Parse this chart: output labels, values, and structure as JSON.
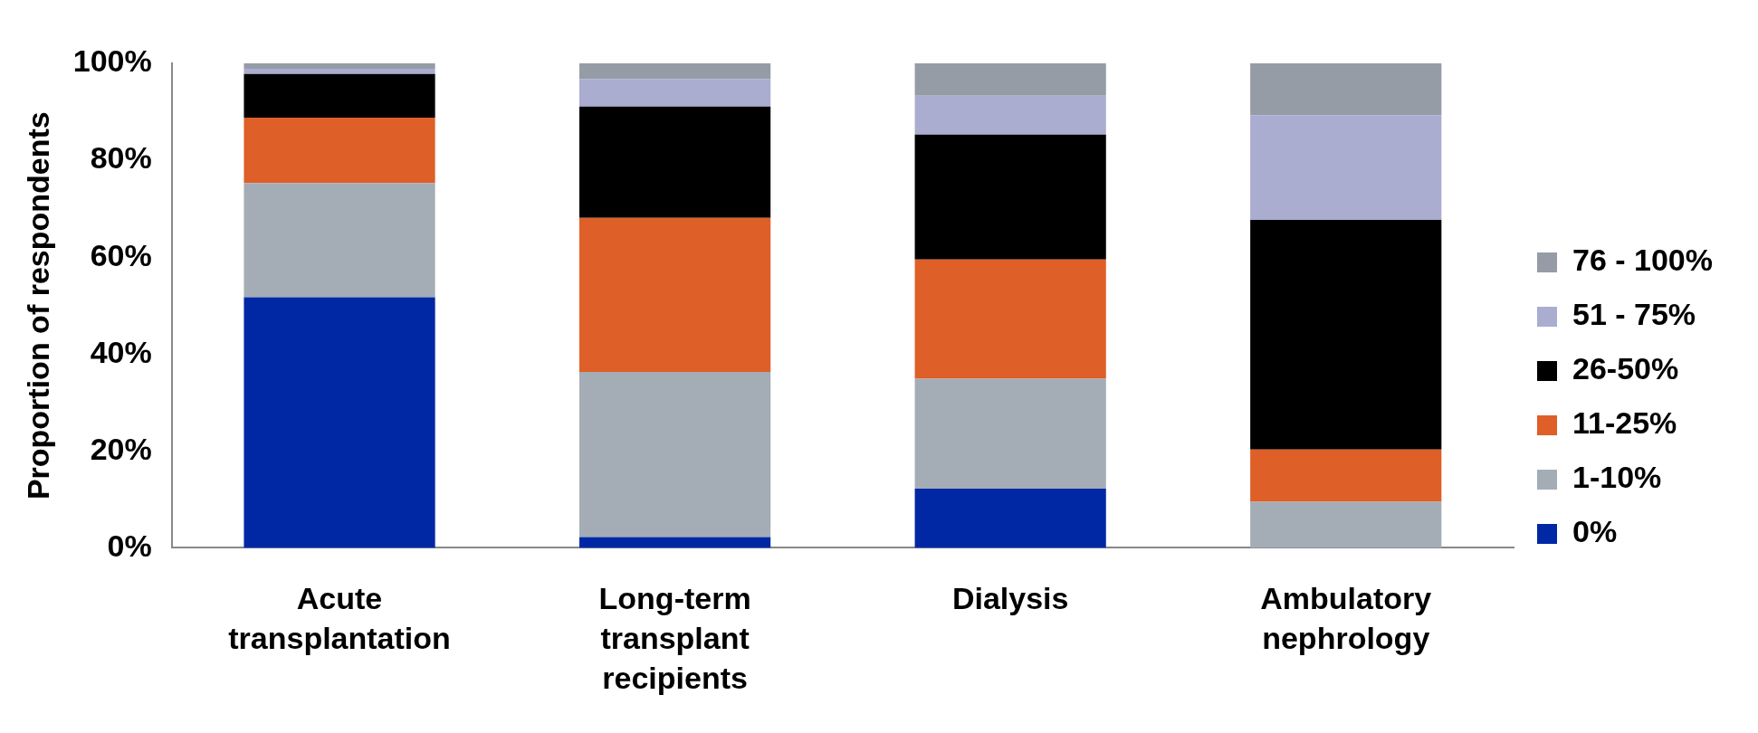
{
  "chart_data": {
    "type": "bar",
    "stacked": true,
    "ylabel": "Proportion of respondents",
    "categories": [
      "Acute transplantation",
      "Long-term transplant recipients",
      "Dialysis",
      "Ambulatory nephrology"
    ],
    "series": [
      {
        "name": "0%",
        "color": "#0028a5",
        "values": [
          51.7,
          2.2,
          12.2,
          0
        ]
      },
      {
        "name": "1-10%",
        "color": "#a4adb6",
        "values": [
          23.6,
          34.1,
          22.7,
          9.5
        ]
      },
      {
        "name": "11-25%",
        "color": "#de5f28",
        "values": [
          13.5,
          31.8,
          24.6,
          10.8
        ]
      },
      {
        "name": "26-50%",
        "color": "#000000",
        "values": [
          9.0,
          23.0,
          25.8,
          47.4
        ]
      },
      {
        "name": "51 - 75%",
        "color": "#aaacd0",
        "values": [
          1.1,
          5.7,
          8.0,
          21.6
        ]
      },
      {
        "name": "76 - 100%",
        "color": "#959ca6",
        "values": [
          1.1,
          3.2,
          6.7,
          10.7
        ]
      }
    ],
    "ylim": [
      0,
      100
    ],
    "yticks": [
      {
        "value": 0,
        "label": "0%"
      },
      {
        "value": 20,
        "label": "20%"
      },
      {
        "value": 40,
        "label": "40%"
      },
      {
        "value": 60,
        "label": "60%"
      },
      {
        "value": 80,
        "label": "80%"
      },
      {
        "value": 100,
        "label": "100%"
      }
    ],
    "grid": false,
    "legend": "right"
  }
}
